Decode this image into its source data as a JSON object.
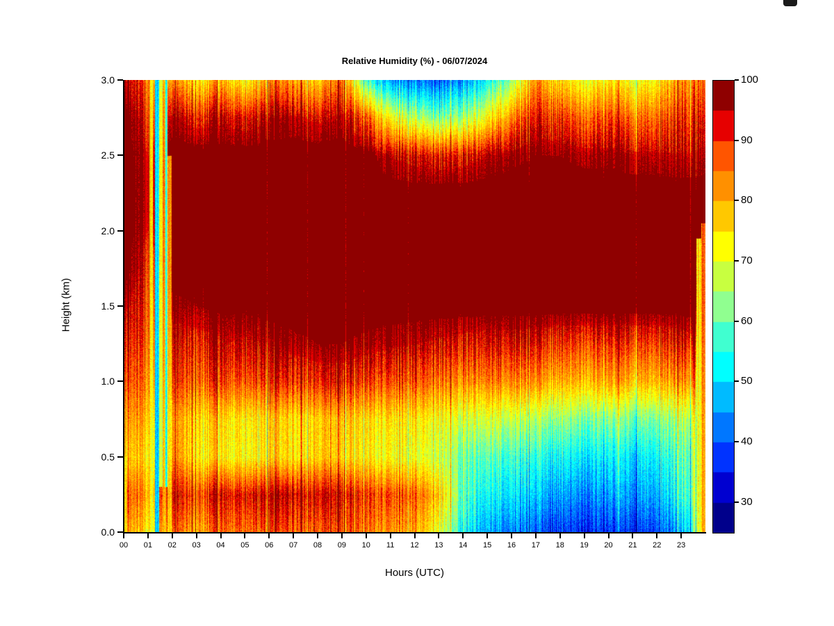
{
  "chart_data": {
    "type": "heatmap",
    "title": "Relative Humidity (%) - 06/07/2024",
    "date": "06/07/2024",
    "xlabel": "Hours (UTC)",
    "ylabel": "Height (km)",
    "x_range": [
      0,
      24
    ],
    "y_range": [
      0,
      3
    ],
    "grid_on": false,
    "x_tick_labels": [
      "00",
      "01",
      "02",
      "03",
      "04",
      "05",
      "06",
      "07",
      "08",
      "09",
      "10",
      "11",
      "12",
      "13",
      "14",
      "15",
      "16",
      "17",
      "18",
      "19",
      "20",
      "21",
      "22",
      "23"
    ],
    "x_tick_values": [
      0,
      1,
      2,
      3,
      4,
      5,
      6,
      7,
      8,
      9,
      10,
      11,
      12,
      13,
      14,
      15,
      16,
      17,
      18,
      19,
      20,
      21,
      22,
      23
    ],
    "y_tick_labels": [
      "0.0",
      "0.5",
      "1.0",
      "1.5",
      "2.0",
      "2.5",
      "3.0"
    ],
    "y_tick_values": [
      0.0,
      0.5,
      1.0,
      1.5,
      2.0,
      2.5,
      3.0
    ],
    "colorbar": {
      "position": "right",
      "vmin": 25,
      "vmax": 100,
      "step": 5,
      "tick_values": [
        30,
        40,
        50,
        60,
        70,
        80,
        90,
        100
      ],
      "tick_labels": [
        "30",
        "40",
        "50",
        "60",
        "70",
        "80",
        "90",
        "100"
      ],
      "colors": [
        "#00008B",
        "#0000D0",
        "#0033FF",
        "#0077FF",
        "#00BBFF",
        "#00FFFF",
        "#40FFD0",
        "#90FF90",
        "#C8FF40",
        "#FFFF00",
        "#FFC800",
        "#FF9000",
        "#FF5500",
        "#E60000",
        "#8F0000"
      ]
    },
    "grid": {
      "hours": [
        0,
        1,
        2,
        3,
        4,
        5,
        6,
        7,
        8,
        9,
        10,
        11,
        12,
        13,
        14,
        15,
        16,
        17,
        18,
        19,
        20,
        21,
        22,
        23,
        24
      ],
      "heights": [
        0.0,
        0.25,
        0.5,
        0.75,
        1.0,
        1.25,
        1.5,
        1.75,
        2.0,
        2.25,
        2.5,
        2.75,
        3.0
      ],
      "values": [
        [
          82,
          88,
          78,
          82,
          88,
          92,
          96,
          100,
          100,
          100,
          100,
          100,
          96
        ],
        [
          75,
          82,
          76,
          80,
          85,
          88,
          90,
          92,
          95,
          96,
          95,
          92,
          86
        ],
        [
          85,
          92,
          82,
          80,
          88,
          92,
          97,
          100,
          100,
          100,
          100,
          96,
          82
        ],
        [
          82,
          90,
          76,
          78,
          88,
          93,
          98,
          100,
          100,
          100,
          100,
          93,
          76
        ],
        [
          85,
          92,
          73,
          75,
          88,
          94,
          99,
          100,
          100,
          100,
          100,
          94,
          78
        ],
        [
          85,
          92,
          72,
          74,
          87,
          94,
          99,
          100,
          100,
          100,
          100,
          92,
          72
        ],
        [
          86,
          93,
          73,
          74,
          88,
          95,
          100,
          100,
          100,
          100,
          100,
          95,
          80
        ],
        [
          87,
          94,
          75,
          76,
          90,
          97,
          100,
          100,
          100,
          100,
          100,
          96,
          82
        ],
        [
          88,
          95,
          78,
          78,
          92,
          98,
          100,
          100,
          100,
          100,
          100,
          94,
          78
        ],
        [
          87,
          93,
          76,
          78,
          92,
          98,
          100,
          100,
          100,
          100,
          100,
          96,
          85
        ],
        [
          85,
          90,
          74,
          76,
          90,
          97,
          100,
          100,
          100,
          100,
          100,
          88,
          58
        ],
        [
          82,
          88,
          72,
          75,
          88,
          96,
          100,
          100,
          100,
          100,
          95,
          72,
          45
        ],
        [
          80,
          86,
          70,
          74,
          87,
          95,
          100,
          100,
          100,
          100,
          93,
          66,
          42
        ],
        [
          70,
          78,
          68,
          72,
          85,
          94,
          100,
          100,
          100,
          100,
          92,
          62,
          40
        ],
        [
          55,
          60,
          62,
          70,
          84,
          93,
          100,
          100,
          100,
          100,
          93,
          66,
          46
        ],
        [
          45,
          52,
          58,
          68,
          83,
          92,
          100,
          100,
          100,
          100,
          95,
          72,
          52
        ],
        [
          42,
          50,
          56,
          66,
          82,
          92,
          100,
          100,
          100,
          100,
          97,
          82,
          62
        ],
        [
          40,
          48,
          55,
          65,
          82,
          92,
          100,
          100,
          100,
          100,
          98,
          92,
          82
        ],
        [
          38,
          46,
          54,
          64,
          80,
          90,
          100,
          100,
          100,
          100,
          98,
          90,
          76
        ],
        [
          38,
          45,
          53,
          63,
          80,
          90,
          100,
          100,
          100,
          100,
          97,
          87,
          72
        ],
        [
          37,
          45,
          52,
          62,
          80,
          90,
          100,
          100,
          100,
          100,
          97,
          88,
          74
        ],
        [
          38,
          46,
          52,
          62,
          80,
          90,
          100,
          100,
          100,
          100,
          96,
          86,
          72
        ],
        [
          40,
          48,
          54,
          63,
          80,
          90,
          100,
          100,
          100,
          100,
          96,
          87,
          74
        ],
        [
          46,
          55,
          58,
          65,
          82,
          92,
          100,
          100,
          100,
          100,
          95,
          90,
          82
        ],
        [
          70,
          72,
          70,
          74,
          85,
          95,
          100,
          100,
          100,
          100,
          96,
          92,
          86
        ]
      ]
    },
    "overlays": [
      {
        "t0": 0.0,
        "t1": 0.1,
        "h0": 0.0,
        "h1": 0.5,
        "rh": 72,
        "mix": 0.7
      },
      {
        "t0": 1.05,
        "t1": 1.18,
        "h0": 0.0,
        "h1": 3.0,
        "rh": 68,
        "mix": 0.75
      },
      {
        "t0": 1.28,
        "t1": 1.45,
        "h0": 0.0,
        "h1": 3.0,
        "rh": 42,
        "mix": 0.85
      },
      {
        "t0": 1.45,
        "t1": 1.6,
        "h0": 0.3,
        "h1": 3.0,
        "rh": 60,
        "mix": 0.7
      },
      {
        "t0": 1.6,
        "t1": 1.7,
        "h0": 0.0,
        "h1": 3.0,
        "rh": 74,
        "mix": 0.6
      },
      {
        "t0": 1.7,
        "t1": 1.78,
        "h0": 0.3,
        "h1": 3.0,
        "rh": 46,
        "mix": 0.8
      },
      {
        "t0": 1.78,
        "t1": 1.95,
        "h0": 0.0,
        "h1": 2.5,
        "rh": 72,
        "mix": 0.55
      },
      {
        "t0": 23.62,
        "t1": 23.82,
        "h0": 0.0,
        "h1": 1.95,
        "rh": 70,
        "mix": 0.85
      },
      {
        "t0": 23.82,
        "t1": 24.01,
        "h0": 0.0,
        "h1": 2.05,
        "rh": 83,
        "mix": 0.8
      }
    ]
  }
}
